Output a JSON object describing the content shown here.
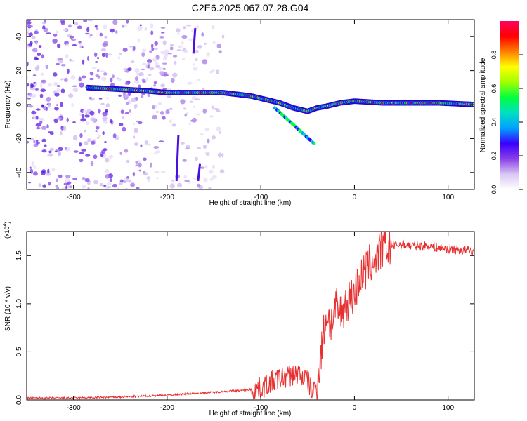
{
  "figure": {
    "title": "C2E6.2025.067.07.28.G04"
  },
  "chart_data": [
    {
      "type": "heatmap",
      "title": "C2E6.2025.067.07.28.G04",
      "xlabel": "Height of straight line (km)",
      "ylabel": "Frequency (Hz)",
      "xlim": [
        -350,
        128
      ],
      "ylim": [
        -50,
        50
      ],
      "x_ticks": [
        -300,
        -200,
        -100,
        0,
        100
      ],
      "y_ticks": [
        -40,
        -20,
        0,
        20,
        40
      ],
      "colorbar": {
        "label": "Normalized spectral amplitude",
        "range": [
          0,
          1
        ],
        "ticks": [
          "0.0",
          "0.2",
          "0.4",
          "0.6",
          "0.8"
        ],
        "colormap": [
          "#ffffff",
          "#d9c6f5",
          "#8a3ee8",
          "#3a00ff",
          "#00a0ff",
          "#00e0c0",
          "#00ff40",
          "#a0ff00",
          "#ffff00",
          "#ff8000",
          "#ff0000",
          "#ff0060"
        ]
      },
      "ridge": {
        "description_points_x": [
          -285,
          -250,
          -220,
          -200,
          -170,
          -140,
          -110,
          -95,
          -80,
          -65,
          -50,
          -40,
          -30,
          -15,
          0,
          30,
          60,
          90,
          128
        ],
        "frequency": [
          10,
          9,
          8,
          7,
          7,
          7,
          5,
          3,
          1,
          -2,
          -4,
          -2,
          -1,
          1,
          2,
          1,
          1,
          1,
          0
        ]
      },
      "grid": false
    },
    {
      "type": "line",
      "xlabel": "Height of straight line (km)",
      "ylabel": "SNR (10 * v/v)",
      "y_multiplier": "(x10^4)",
      "xlim": [
        -350,
        128
      ],
      "ylim": [
        0,
        1.75
      ],
      "x_ticks": [
        -300,
        -200,
        -100,
        0,
        100
      ],
      "y_ticks": [
        "0.0",
        "0.5",
        "1.0",
        "1.5"
      ],
      "series": [
        {
          "color": "#e83030",
          "x": [
            -350,
            -300,
            -250,
            -200,
            -150,
            -120,
            -100,
            -90,
            -80,
            -70,
            -60,
            -50,
            -45,
            -40,
            -35,
            -30,
            -25,
            -20,
            -15,
            -10,
            -5,
            0,
            5,
            10,
            15,
            20,
            25,
            30,
            40,
            50,
            60,
            70,
            80,
            90,
            100,
            110,
            128
          ],
          "y": [
            0.02,
            0.02,
            0.03,
            0.05,
            0.08,
            0.1,
            0.12,
            0.18,
            0.22,
            0.25,
            0.28,
            0.2,
            0.08,
            0.15,
            0.55,
            0.9,
            0.8,
            0.95,
            0.9,
            1.0,
            1.05,
            1.1,
            1.25,
            1.3,
            1.4,
            1.45,
            1.5,
            1.58,
            1.6,
            1.62,
            1.6,
            1.6,
            1.6,
            1.58,
            1.57,
            1.56,
            1.55
          ]
        }
      ],
      "grid": false
    }
  ]
}
